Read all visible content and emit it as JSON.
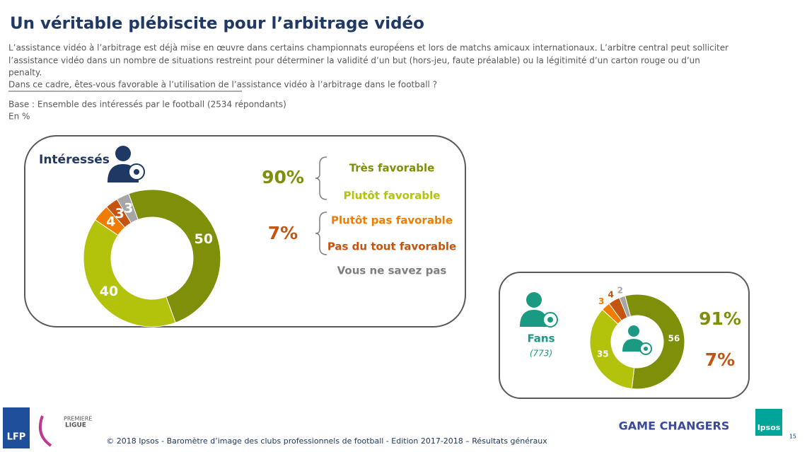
{
  "title": "Un véritable plébiscite pour l’arbitrage vidéo",
  "intro": [
    "L’assistance vidéo à l’arbitrage est déjà mise en œuvre dans certains championnats européens et lors de matchs amicaux internationaux. L’arbitre central peut solliciter",
    "l’assistance vidéo dans un nombre de situations restreint pour déterminer la validité d’un but (hors-jeu, faute préalable) ou la légitimité d’un carton rouge ou d’un",
    "penalty."
  ],
  "question": "Dans ce cadre, êtes-vous favorable à l’utilisation de l’assistance vidéo à l’arbitrage dans le football ?",
  "base": "Base : Ensemble des intéressés par le football (2534 répondants)",
  "unit": "En %",
  "chart_data": [
    {
      "type": "donut",
      "title": "Intéressés",
      "categories": [
        "Très favorable",
        "Plutôt favorable",
        "Plutôt pas favorable",
        "Pas du tout favorable",
        "Vous ne savez pas"
      ],
      "values": [
        50,
        40,
        4,
        3,
        3
      ],
      "colors": [
        "#7f8f0a",
        "#b3c30c",
        "#f07d00",
        "#c4540f",
        "#a6a6a6"
      ],
      "summary_labels": [
        "90%",
        "7%"
      ]
    },
    {
      "type": "donut",
      "title": "Fans",
      "subtitle": "(773)",
      "values": [
        56,
        35,
        3,
        4,
        2
      ],
      "colors": [
        "#7f8f0a",
        "#b3c30c",
        "#f07d00",
        "#c4540f",
        "#a6a6a6"
      ],
      "summary_labels": [
        "91%",
        "7%"
      ]
    }
  ],
  "footer": {
    "copyright": "© 2018 Ipsos - Baromètre d’image des clubs professionnels de football  - Edition 2017-2018 – Résultats généraux",
    "page": "15",
    "tagline": "GAME CHANGERS",
    "brand": "Ipsos",
    "lfp": "LFP",
    "league": [
      "PREMIERE",
      "LIGUE"
    ]
  }
}
